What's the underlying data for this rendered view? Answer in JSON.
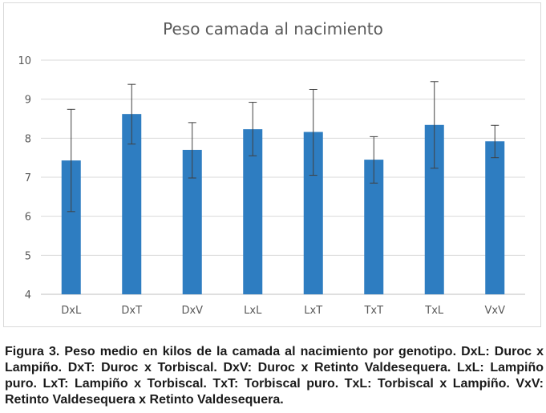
{
  "caption": "Figura 3. Peso medio en kilos de la camada al nacimiento por genotipo. DxL: Duroc x Lampiño. DxT: Duroc x Torbiscal. DxV: Duroc x Retinto Valdesequera. LxL: Lampiño puro. LxT: Lampiño x Torbiscal. TxT: Torbiscal puro. TxL: Torbiscal x Lampiño. VxV: Retinto Valdesequera x Retinto Valdesequera.",
  "chart_data": {
    "type": "bar",
    "title": "Peso camada al nacimiento",
    "xlabel": "",
    "ylabel": "",
    "ylim": [
      4,
      10
    ],
    "yticks": [
      "4",
      "5",
      "6",
      "7",
      "8",
      "9",
      "10"
    ],
    "grid": true,
    "bar_color": "#2e7dc1",
    "categories": [
      "DxL",
      "DxT",
      "DxV",
      "LxL",
      "LxT",
      "TxT",
      "TxL",
      "VxV"
    ],
    "values": [
      7.43,
      8.62,
      7.7,
      8.23,
      8.16,
      7.45,
      8.34,
      7.92
    ],
    "error_low": [
      6.12,
      7.85,
      6.98,
      7.55,
      7.05,
      6.85,
      7.23,
      7.5
    ],
    "error_high": [
      8.74,
      9.38,
      8.4,
      8.92,
      9.25,
      8.04,
      9.45,
      8.33
    ]
  }
}
